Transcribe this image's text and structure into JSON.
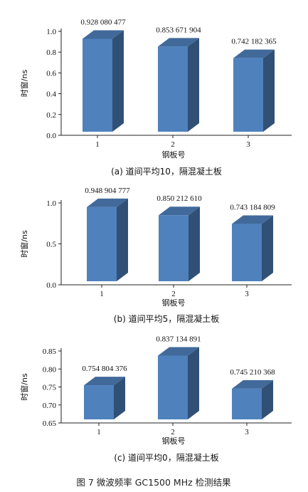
{
  "figure_caption": "图 7   微波频率 GC1500 MHz 检测结果",
  "chart_data": [
    {
      "type": "bar",
      "caption": "(a) 道间平均10，隔混凝土板",
      "categories": [
        "1",
        "2",
        "3"
      ],
      "values": [
        0.928080477,
        0.853671904,
        0.742182365
      ],
      "data_labels": [
        "0.928 080 477",
        "0.853 671 904",
        "0.742 182 365"
      ],
      "xlabel": "钢板号",
      "ylabel": "时窗/ns",
      "ylim": [
        0.0,
        1.0
      ],
      "yticks": [
        0.0,
        0.2,
        0.4,
        0.6,
        0.8,
        1.0
      ],
      "ytick_labels": [
        "0.0",
        "0.2",
        "0.4",
        "0.6",
        "0.8",
        "1.0"
      ],
      "bar_color": "#4F81BD",
      "grid": false
    },
    {
      "type": "bar",
      "caption": "(b) 道间平均5，隔混凝土板",
      "categories": [
        "1",
        "2",
        "3"
      ],
      "values": [
        0.948904777,
        0.85021261,
        0.743184809
      ],
      "data_labels": [
        "0.948 904 777",
        "0.850 212 610",
        "0.743 184 809"
      ],
      "xlabel": "钢板号",
      "ylabel": "时窗/ns",
      "ylim": [
        0.0,
        1.0
      ],
      "yticks": [
        0.0,
        0.5,
        1.0
      ],
      "ytick_labels": [
        "0.0",
        "0.5",
        "1.0"
      ],
      "bar_color": "#4F81BD",
      "grid": false
    },
    {
      "type": "bar",
      "caption": "(c) 道间平均0，隔混凝土板",
      "categories": [
        "1",
        "2",
        "3"
      ],
      "values": [
        0.754804376,
        0.837134891,
        0.745210368
      ],
      "data_labels": [
        "0.754 804 376",
        "0.837 134 891",
        "0.745 210 368"
      ],
      "xlabel": "钢板号",
      "ylabel": "时窗/ns",
      "ylim": [
        0.65,
        0.85
      ],
      "yticks": [
        0.65,
        0.7,
        0.75,
        0.8,
        0.85
      ],
      "ytick_labels": [
        "0.65",
        "0.70",
        "0.75",
        "0.80",
        "0.85"
      ],
      "bar_color": "#4F81BD",
      "grid": false
    }
  ]
}
